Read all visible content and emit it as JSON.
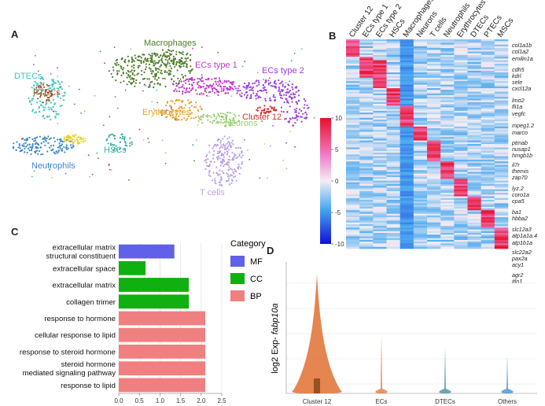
{
  "panels": {
    "A": "A",
    "B": "B",
    "C": "C",
    "D": "D"
  },
  "umap": {
    "clusters": [
      {
        "name": "Macrophages",
        "color": "#4f7f2a"
      },
      {
        "name": "ECs type 1",
        "color": "#c23bd0"
      },
      {
        "name": "ECs type 2",
        "color": "#9b3fe0"
      },
      {
        "name": "DTECs",
        "color": "#40c8c0"
      },
      {
        "name": "PTECs",
        "color": "#9a5a2a"
      },
      {
        "name": "Erythrocytes",
        "color": "#e8a030"
      },
      {
        "name": "Cluster 12",
        "color": "#d32f2f"
      },
      {
        "name": "Neurons",
        "color": "#98d070"
      },
      {
        "name": "MSCs",
        "color": "#e8d020"
      },
      {
        "name": "HSCs",
        "color": "#30b0a0"
      },
      {
        "name": "Neutrophils",
        "color": "#3a88d0"
      },
      {
        "name": "T cells",
        "color": "#b8a0e8"
      }
    ]
  },
  "heatmap": {
    "columns": [
      "Cluster 12",
      "ECs type 1",
      "ECs type 2",
      "HSCs",
      "Macrophages",
      "Neurons",
      "T cells",
      "Neutrophils",
      "Erythrocytes",
      "DTECs",
      "PTECs",
      "MSCs"
    ],
    "genes": [
      "col1a1b",
      "col1a2",
      "emilin1a",
      "cdh5",
      "kdrl",
      "sele",
      "cxcl12a",
      "lmo2",
      "fli1a",
      "vegfc",
      "mpeg1.2",
      "marco",
      "ptmab",
      "nusap1",
      "hmgb1b",
      "il7r",
      "themis",
      "zap70",
      "lyz.2",
      "coro1a",
      "cpa5",
      "ba1",
      "hbba2",
      "slc12a3",
      "atp1a1a.4",
      "atp1b1a",
      "slc22a2",
      "pax2a",
      "acy1",
      "agr2",
      "itln1"
    ],
    "colorbar": {
      "ticks": [
        "10",
        "5",
        "0",
        "-5",
        "-10"
      ],
      "high": "#e8102a",
      "mid": "#f2eef4",
      "low": "#1010d8"
    }
  },
  "chart_data": [
    {
      "type": "bar",
      "orientation": "horizontal",
      "categories": [
        "extracellular matrix structural constituent",
        "extracellular space",
        "extracellular matrix",
        "collagen trimer",
        "response to hormone",
        "cellular response to lipid",
        "response to steroid hormone",
        "steroid hormone mediated signaling pathway",
        "response to lipid"
      ],
      "category_lines": [
        [
          "extracellular matrix",
          "structural constituent"
        ],
        [
          "extracellular space"
        ],
        [
          "extracellular matrix"
        ],
        [
          "collagen trimer"
        ],
        [
          "response to hormone"
        ],
        [
          "cellular response to lipid"
        ],
        [
          "response to steroid hormone"
        ],
        [
          "steroid hormone",
          "mediated signaling pathway"
        ],
        [
          "response to lipid"
        ]
      ],
      "values": [
        1.35,
        0.65,
        1.7,
        1.7,
        2.1,
        2.1,
        2.1,
        2.1,
        2.1
      ],
      "groups": [
        "MF",
        "CC",
        "CC",
        "CC",
        "BP",
        "BP",
        "BP",
        "BP",
        "BP"
      ],
      "legend": {
        "title": "Category",
        "entries": [
          {
            "name": "MF",
            "color": "#6060e8"
          },
          {
            "name": "CC",
            "color": "#10b010"
          },
          {
            "name": "BP",
            "color": "#f08080"
          }
        ],
        "placement": "right"
      },
      "xlim": [
        0,
        2.5
      ],
      "xticks": [
        "0.0",
        "0.5",
        "1.0",
        "1.5",
        "2.0",
        "2.5"
      ],
      "xticks_values": [
        0,
        0.5,
        1.0,
        1.5,
        2.0,
        2.5
      ],
      "grid": true
    },
    {
      "type": "violin",
      "categories": [
        "Cluster 12",
        "ECs",
        "DTECs",
        "Others"
      ],
      "ylabel_prefix": "log2 Exp- ",
      "ylabel_gene": "fabp10a",
      "colors": [
        "#e07030",
        "#e07030",
        "#3a8a9a",
        "#3a88d0"
      ],
      "grid": true
    }
  ]
}
